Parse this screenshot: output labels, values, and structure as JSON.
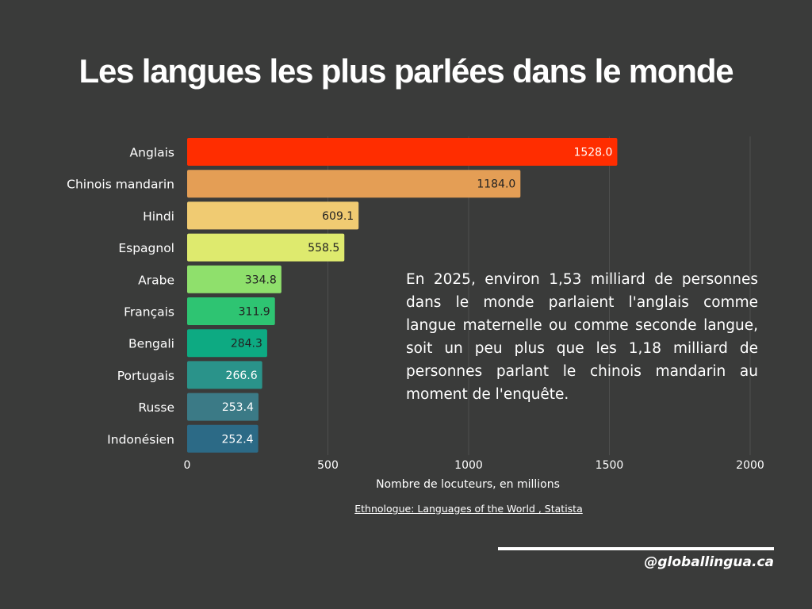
{
  "colors": {
    "background": "#3a3b3a",
    "grid": "#4e4f4e",
    "text": "#ffffff"
  },
  "note": "En 2025, environ 1,53 milliard de personnes dans le monde parlaient l'anglais comme langue maternelle ou comme seconde langue, soit un peu plus que les 1,18 milliard de personnes parlant le chinois mandarin au moment de l'enquête.",
  "source": "Ethnologue: Languages of the World , Statista",
  "handle": "@globallingua.ca",
  "chart_data": {
    "type": "bar",
    "orientation": "horizontal",
    "title": "Les langues les plus parlées dans le monde",
    "xlabel": "Nombre de locuteurs, en millions",
    "ylabel": "",
    "xlim": [
      0,
      2000
    ],
    "xticks": [
      0,
      500,
      1000,
      1500,
      2000
    ],
    "grid": "vertical",
    "categories": [
      "Anglais",
      "Chinois mandarin",
      "Hindi",
      "Espagnol",
      "Arabe",
      "Français",
      "Bengali",
      "Portugais",
      "Russe",
      "Indonésien"
    ],
    "values": [
      1528.0,
      1184.0,
      609.1,
      558.5,
      334.8,
      311.9,
      284.3,
      266.6,
      253.4,
      252.4
    ],
    "value_labels": [
      "1528.0",
      "1184.0",
      "609.1",
      "558.5",
      "334.8",
      "311.9",
      "284.3",
      "266.6",
      "253.4",
      "252.4"
    ],
    "bar_colors": [
      "#ff2d00",
      "#e49e55",
      "#f0cb72",
      "#deea6e",
      "#8fe06c",
      "#2ec472",
      "#0daa82",
      "#2a938a",
      "#3b7a86",
      "#2c6a86"
    ],
    "label_colors": [
      "#ffffff",
      "#222222",
      "#222222",
      "#222222",
      "#222222",
      "#222222",
      "#222222",
      "#ffffff",
      "#ffffff",
      "#ffffff"
    ]
  }
}
